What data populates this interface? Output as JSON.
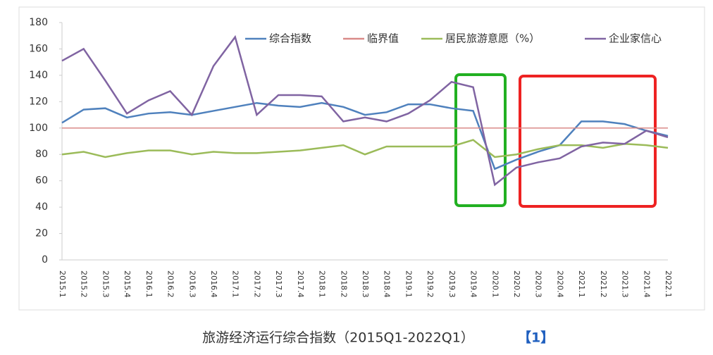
{
  "chart_data": {
    "type": "line",
    "title": "旅游经济运行综合指数（2015Q1-2022Q1）",
    "title_note": "【1】",
    "categories": [
      "2015.1",
      "2015.2",
      "2015.3",
      "2015.4",
      "2016.1",
      "2016.2",
      "2016.3",
      "2016.4",
      "2017.1",
      "2017.2",
      "2017.3",
      "2017.4",
      "2018.1",
      "2018.2",
      "2018.3",
      "2018.4",
      "2019.1",
      "2019.2",
      "2019.3",
      "2019.4",
      "2020.1",
      "2020.2",
      "2020.3",
      "2020.4",
      "2021.1",
      "2021.2",
      "2021.3",
      "2021.4",
      "2022.1"
    ],
    "series": [
      {
        "name": "综合指数",
        "color": "#4f81bd",
        "values": [
          104,
          114,
          115,
          108,
          111,
          112,
          110,
          113,
          116,
          119,
          117,
          116,
          119,
          116,
          110,
          112,
          118,
          118,
          115,
          113,
          69,
          76,
          82,
          87,
          105,
          105,
          103,
          98,
          94
        ]
      },
      {
        "name": "临界值",
        "color": "#d98a88",
        "values": [
          100,
          100,
          100,
          100,
          100,
          100,
          100,
          100,
          100,
          100,
          100,
          100,
          100,
          100,
          100,
          100,
          100,
          100,
          100,
          100,
          100,
          100,
          100,
          100,
          100,
          100,
          100,
          100,
          100
        ]
      },
      {
        "name": "居民旅游意愿（%）",
        "color": "#9bbb59",
        "values": [
          80,
          82,
          78,
          81,
          83,
          83,
          80,
          82,
          81,
          81,
          82,
          83,
          85,
          87,
          80,
          86,
          86,
          86,
          86,
          91,
          78,
          80,
          84,
          87,
          87,
          85,
          88,
          87,
          85
        ]
      },
      {
        "name": "企业家信心",
        "color": "#8064a2",
        "values": [
          151,
          160,
          136,
          111,
          121,
          128,
          110,
          147,
          169,
          110,
          125,
          125,
          124,
          105,
          108,
          105,
          111,
          121,
          135,
          131,
          57,
          70,
          74,
          77,
          86,
          89,
          88,
          98,
          93
        ]
      }
    ],
    "ylim": [
      0,
      180
    ],
    "yticks": [
      0,
      20,
      40,
      60,
      80,
      100,
      120,
      140,
      160,
      180
    ],
    "grid": false
  }
}
